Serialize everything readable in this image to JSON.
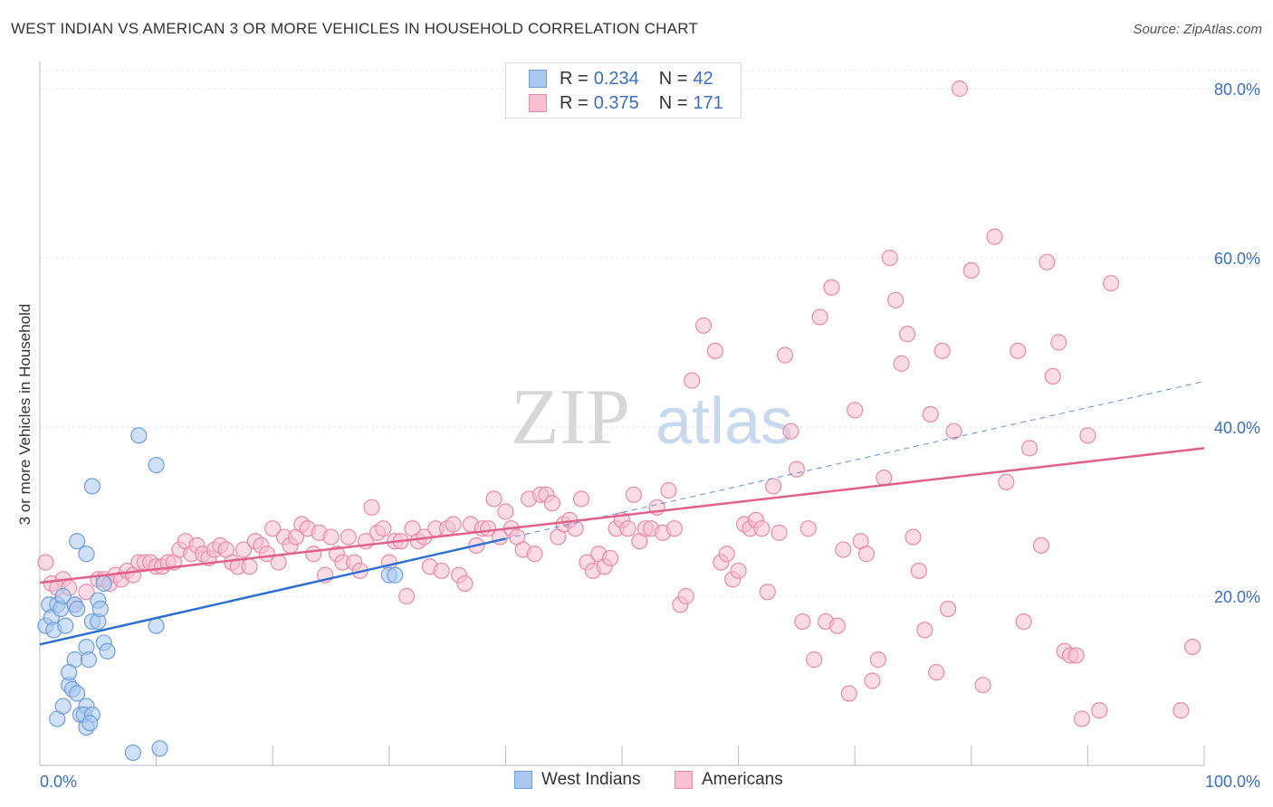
{
  "title": "WEST INDIAN VS AMERICAN 3 OR MORE VEHICLES IN HOUSEHOLD CORRELATION CHART",
  "source": "Source: ZipAtlas.com",
  "watermark": {
    "zip": "ZIP",
    "atlas": "atlas"
  },
  "legend": {
    "r_label": "R =",
    "n_label": "N =",
    "rows": [
      {
        "r": "0.234",
        "n": "42",
        "color": "#a9c8f0",
        "border": "#6e9fdc"
      },
      {
        "r": "0.375",
        "n": "171",
        "color": "#f8c0d0",
        "border": "#e98aa8"
      }
    ]
  },
  "bottom_legend": [
    {
      "label": "West Indians",
      "color": "#a9c8f0",
      "border": "#6e9fdc"
    },
    {
      "label": "Americans",
      "color": "#f8c0d0",
      "border": "#e98aa8"
    }
  ],
  "chart_data": {
    "type": "scatter",
    "title": "WEST INDIAN VS AMERICAN 3 OR MORE VEHICLES IN HOUSEHOLD CORRELATION CHART",
    "xlabel": "",
    "ylabel": "3 or more Vehicles in Household",
    "xlim": [
      0,
      100
    ],
    "ylim": [
      0,
      80
    ],
    "x_ticks": [
      "0.0%",
      "100.0%"
    ],
    "y_ticks": [
      "20.0%",
      "40.0%",
      "60.0%",
      "80.0%"
    ],
    "y_tick_values": [
      20,
      40,
      60,
      80
    ],
    "grid": true,
    "legend_position": "top-center",
    "series": [
      {
        "name": "West Indians",
        "color": "#6e9fdc",
        "fill": "#a9c8f0",
        "trend": {
          "x0": 0,
          "y0": 14.3,
          "x1": 40,
          "y1": 26.8,
          "line": "#2f6fcf"
        },
        "trend_extension": {
          "x0": 40,
          "y0": 26.8,
          "x1": 100,
          "y1": 45.4
        },
        "points": [
          [
            0.5,
            16.5
          ],
          [
            0.8,
            19
          ],
          [
            1,
            17.5
          ],
          [
            1.2,
            16
          ],
          [
            1.5,
            19
          ],
          [
            1.8,
            18.5
          ],
          [
            2,
            20
          ],
          [
            2.2,
            16.5
          ],
          [
            1.5,
            5.5
          ],
          [
            2,
            7
          ],
          [
            2.5,
            9.5
          ],
          [
            3,
            12.5
          ],
          [
            2.8,
            9
          ],
          [
            3.2,
            8.5
          ],
          [
            3,
            19
          ],
          [
            3.5,
            6
          ],
          [
            4,
            7
          ],
          [
            3.8,
            6
          ],
          [
            3.2,
            18.5
          ],
          [
            4,
            14
          ],
          [
            4.5,
            17
          ],
          [
            3.2,
            26.5
          ],
          [
            4,
            25
          ],
          [
            5,
            17
          ],
          [
            5,
            19.5
          ],
          [
            5.2,
            18.5
          ],
          [
            4.5,
            6
          ],
          [
            4,
            4.5
          ],
          [
            4.3,
            5
          ],
          [
            4.2,
            12.5
          ],
          [
            4.5,
            33
          ],
          [
            5.5,
            14.5
          ],
          [
            5.8,
            13.5
          ],
          [
            5.5,
            21.5
          ],
          [
            8.5,
            39
          ],
          [
            10,
            35.5
          ],
          [
            10,
            16.5
          ],
          [
            8,
            1.5
          ],
          [
            10.3,
            2
          ],
          [
            30,
            22.5
          ],
          [
            30.5,
            22.5
          ],
          [
            2.5,
            11
          ]
        ]
      },
      {
        "name": "Americans",
        "color": "#e98aa8",
        "fill": "#f8c0d0",
        "trend": {
          "x0": 0,
          "y0": 21.6,
          "x1": 100,
          "y1": 37.5,
          "line": "#e0628c"
        },
        "points": [
          [
            0.5,
            24
          ],
          [
            1,
            21.5
          ],
          [
            2,
            22
          ],
          [
            1.5,
            21
          ],
          [
            3,
            19
          ],
          [
            2.5,
            21
          ],
          [
            4,
            20.5
          ],
          [
            5,
            22
          ],
          [
            5.5,
            22
          ],
          [
            6,
            21.5
          ],
          [
            6.5,
            22.5
          ],
          [
            7,
            22
          ],
          [
            7.5,
            23
          ],
          [
            8,
            22.5
          ],
          [
            8.5,
            24
          ],
          [
            9,
            24
          ],
          [
            9.5,
            24
          ],
          [
            10,
            23.5
          ],
          [
            10.5,
            23.5
          ],
          [
            11,
            24
          ],
          [
            11.5,
            24
          ],
          [
            12,
            25.5
          ],
          [
            12.5,
            26.5
          ],
          [
            13,
            25
          ],
          [
            13.5,
            26
          ],
          [
            14,
            25
          ],
          [
            14.5,
            24.5
          ],
          [
            15,
            25.5
          ],
          [
            15.5,
            26
          ],
          [
            16,
            25.5
          ],
          [
            16.5,
            24
          ],
          [
            17,
            23.5
          ],
          [
            17.5,
            25.5
          ],
          [
            18,
            23.5
          ],
          [
            18.5,
            26.5
          ],
          [
            19,
            26
          ],
          [
            19.5,
            25
          ],
          [
            20,
            28
          ],
          [
            20.5,
            24
          ],
          [
            21,
            27
          ],
          [
            21.5,
            26
          ],
          [
            22,
            27
          ],
          [
            22.5,
            28.5
          ],
          [
            23,
            28
          ],
          [
            23.5,
            25
          ],
          [
            24,
            27.5
          ],
          [
            24.5,
            22.5
          ],
          [
            25,
            27
          ],
          [
            25.5,
            25
          ],
          [
            26,
            24
          ],
          [
            26.5,
            27
          ],
          [
            27,
            24
          ],
          [
            27.5,
            23
          ],
          [
            28,
            26.5
          ],
          [
            28.5,
            30.5
          ],
          [
            29,
            27.5
          ],
          [
            29.5,
            28
          ],
          [
            30,
            24
          ],
          [
            30.5,
            26.5
          ],
          [
            31,
            26.5
          ],
          [
            31.5,
            20
          ],
          [
            32,
            28
          ],
          [
            32.5,
            26.5
          ],
          [
            33,
            27
          ],
          [
            33.5,
            23.5
          ],
          [
            34,
            28
          ],
          [
            34.5,
            23
          ],
          [
            35,
            28
          ],
          [
            35.5,
            28.5
          ],
          [
            36,
            22.5
          ],
          [
            36.5,
            21.5
          ],
          [
            37,
            28.5
          ],
          [
            37.5,
            26
          ],
          [
            38,
            28
          ],
          [
            38.5,
            28
          ],
          [
            39,
            31.5
          ],
          [
            39.5,
            27
          ],
          [
            40,
            30
          ],
          [
            40.5,
            28
          ],
          [
            41,
            27
          ],
          [
            41.5,
            25.5
          ],
          [
            42,
            31.5
          ],
          [
            42.5,
            25
          ],
          [
            43,
            32
          ],
          [
            43.5,
            32
          ],
          [
            44,
            31
          ],
          [
            44.5,
            27
          ],
          [
            45,
            28.5
          ],
          [
            45.5,
            29
          ],
          [
            46,
            28
          ],
          [
            46.5,
            31.5
          ],
          [
            47,
            24
          ],
          [
            47.5,
            23
          ],
          [
            48,
            25
          ],
          [
            48.5,
            23.5
          ],
          [
            49,
            24.5
          ],
          [
            49.5,
            28
          ],
          [
            50,
            29
          ],
          [
            50.5,
            28
          ],
          [
            51,
            32
          ],
          [
            51.5,
            26.5
          ],
          [
            52,
            28
          ],
          [
            52.5,
            28
          ],
          [
            53,
            30.5
          ],
          [
            53.5,
            27.5
          ],
          [
            54,
            32.5
          ],
          [
            54.5,
            28
          ],
          [
            55,
            19
          ],
          [
            55.5,
            20
          ],
          [
            56,
            45.5
          ],
          [
            57,
            52
          ],
          [
            58,
            49
          ],
          [
            58.5,
            24
          ],
          [
            59,
            25
          ],
          [
            59.5,
            22
          ],
          [
            60,
            23
          ],
          [
            60.5,
            28.5
          ],
          [
            61,
            28
          ],
          [
            61.5,
            29
          ],
          [
            62,
            28
          ],
          [
            62.5,
            20.5
          ],
          [
            63,
            33
          ],
          [
            63.5,
            27.5
          ],
          [
            64,
            48.5
          ],
          [
            64.5,
            39.5
          ],
          [
            65,
            35
          ],
          [
            65.5,
            17
          ],
          [
            66,
            28
          ],
          [
            66.5,
            12.5
          ],
          [
            67,
            53
          ],
          [
            67.5,
            17
          ],
          [
            68,
            56.5
          ],
          [
            68.5,
            16.5
          ],
          [
            69,
            25.5
          ],
          [
            69.5,
            8.5
          ],
          [
            70,
            42
          ],
          [
            70.5,
            26.5
          ],
          [
            71,
            25
          ],
          [
            71.5,
            10
          ],
          [
            72,
            12.5
          ],
          [
            72.5,
            34
          ],
          [
            73,
            60
          ],
          [
            73.5,
            55
          ],
          [
            74,
            47.5
          ],
          [
            74.5,
            51
          ],
          [
            75,
            27
          ],
          [
            75.5,
            23
          ],
          [
            76,
            16
          ],
          [
            76.5,
            41.5
          ],
          [
            77,
            11
          ],
          [
            77.5,
            49
          ],
          [
            78,
            18.5
          ],
          [
            78.5,
            39.5
          ],
          [
            79,
            80
          ],
          [
            80,
            58.5
          ],
          [
            81,
            9.5
          ],
          [
            82,
            62.5
          ],
          [
            83,
            33.5
          ],
          [
            84,
            49
          ],
          [
            84.5,
            17
          ],
          [
            85,
            37.5
          ],
          [
            86,
            26
          ],
          [
            86.5,
            59.5
          ],
          [
            87,
            46
          ],
          [
            87.5,
            50
          ],
          [
            88,
            13.5
          ],
          [
            88.5,
            13
          ],
          [
            89,
            13
          ],
          [
            89.5,
            5.5
          ],
          [
            90,
            39
          ],
          [
            91,
            6.5
          ],
          [
            92,
            57
          ],
          [
            98,
            6.5
          ],
          [
            99,
            14
          ]
        ]
      }
    ]
  }
}
